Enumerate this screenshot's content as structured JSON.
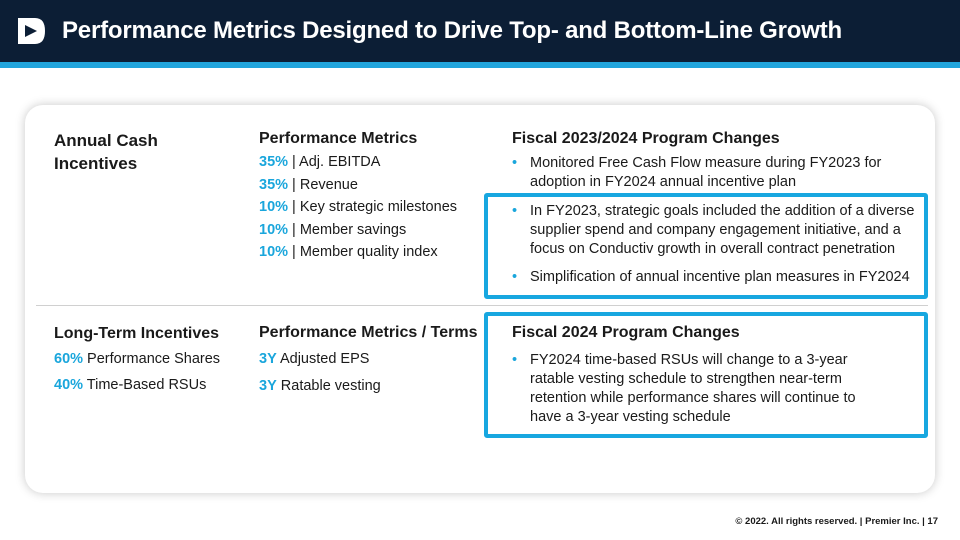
{
  "header": {
    "title": "Performance Metrics Designed to Drive Top- and Bottom-Line Growth"
  },
  "annual": {
    "heading": "Annual Cash Incentives",
    "metrics_title": "Performance Metrics",
    "metrics": [
      {
        "pct": "35%",
        "label": " | Adj. EBITDA"
      },
      {
        "pct": "35%",
        "label": " | Revenue"
      },
      {
        "pct": "10%",
        "label": " | Key strategic milestones"
      },
      {
        "pct": "10%",
        "label": " | Member savings"
      },
      {
        "pct": "10%",
        "label": " | Member quality index"
      }
    ],
    "changes_title": "Fiscal 2023/2024 Program Changes",
    "changes": [
      "Monitored Free Cash Flow measure during FY2023 for adoption in FY2024 annual incentive plan",
      "In FY2023, strategic goals included the addition of a diverse supplier spend and company engagement initiative, and a focus on Conductiv growth in overall contract penetration",
      "Simplification of annual incentive plan measures in FY2024"
    ]
  },
  "longterm": {
    "heading": "Long-Term Incentives",
    "items": [
      {
        "pct": "60%",
        "label": " Performance Shares"
      },
      {
        "pct": "40%",
        "label": " Time-Based RSUs"
      }
    ],
    "metrics_title": "Performance Metrics / Terms",
    "metrics": [
      {
        "pct": "3Y",
        "label": " Adjusted EPS"
      },
      {
        "pct": "3Y",
        "label": " Ratable vesting"
      }
    ],
    "changes_title": "Fiscal 2024 Program Changes",
    "changes": [
      "FY2024 time-based RSUs will change to a 3-year ratable vesting schedule to strengthen near-term retention while performance shares will continue to have a 3-year vesting schedule"
    ]
  },
  "footer": {
    "text": "© 2022. All rights reserved.  |  Premier Inc.  |  17"
  },
  "colors": {
    "header_bg": "#0c1e35",
    "accent": "#22a5dc",
    "highlight": "#17a7e0"
  }
}
